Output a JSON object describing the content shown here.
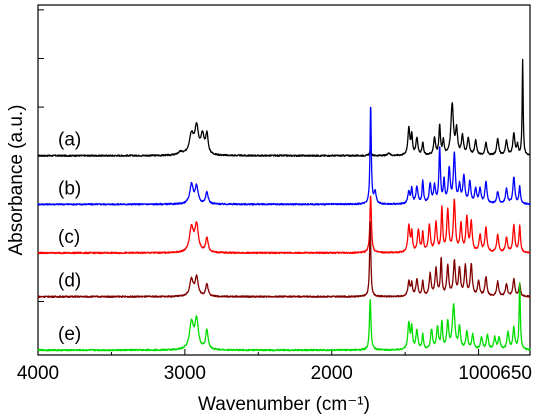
{
  "chart_data": {
    "type": "line",
    "title": "",
    "xlabel": "Wavenumber (cm⁻¹)",
    "ylabel": "Absorbance (a.u.)",
    "xlim": [
      4000,
      650
    ],
    "x_reversed": true,
    "x_ticks": [
      {
        "value": 4000,
        "label": "4000"
      },
      {
        "value": 3000,
        "label": "3000"
      },
      {
        "value": 2000,
        "label": "2000"
      },
      {
        "value": 1000,
        "label": "1000"
      },
      {
        "value": 650,
        "label": "650"
      }
    ],
    "y_tick_labels": false,
    "grid": false,
    "series": [
      {
        "name": "(a)",
        "color": "#000000",
        "baseline": 4.0,
        "peaks": [
          [
            3030,
            0.06,
            18
          ],
          [
            2955,
            0.42,
            18
          ],
          [
            2920,
            0.55,
            14
          ],
          [
            2880,
            0.38,
            14
          ],
          [
            2850,
            0.4,
            10
          ],
          [
            1738,
            0.1,
            6
          ],
          [
            1610,
            0.06,
            8
          ],
          [
            1475,
            0.55,
            8
          ],
          [
            1455,
            0.4,
            6
          ],
          [
            1420,
            0.35,
            8
          ],
          [
            1380,
            0.25,
            6
          ],
          [
            1300,
            0.35,
            8
          ],
          [
            1265,
            0.6,
            6
          ],
          [
            1240,
            0.3,
            6
          ],
          [
            1180,
            1.05,
            10
          ],
          [
            1150,
            0.5,
            8
          ],
          [
            1110,
            0.4,
            8
          ],
          [
            1070,
            0.35,
            8
          ],
          [
            1020,
            0.3,
            8
          ],
          [
            950,
            0.25,
            8
          ],
          [
            870,
            0.35,
            8
          ],
          [
            810,
            0.3,
            8
          ],
          [
            760,
            0.45,
            8
          ],
          [
            735,
            0.2,
            6
          ],
          [
            700,
            1.95,
            4
          ]
        ]
      },
      {
        "name": "(b)",
        "color": "#0000ff",
        "baseline": 3.0,
        "peaks": [
          [
            2955,
            0.4,
            14
          ],
          [
            2920,
            0.35,
            12
          ],
          [
            2850,
            0.25,
            10
          ],
          [
            1735,
            2.05,
            5
          ],
          [
            1705,
            0.25,
            8
          ],
          [
            1475,
            0.25,
            8
          ],
          [
            1455,
            0.3,
            6
          ],
          [
            1420,
            0.35,
            8
          ],
          [
            1380,
            0.45,
            6
          ],
          [
            1330,
            0.4,
            8
          ],
          [
            1300,
            0.35,
            8
          ],
          [
            1265,
            1.15,
            6
          ],
          [
            1235,
            0.45,
            6
          ],
          [
            1200,
            0.7,
            8
          ],
          [
            1165,
            1.0,
            8
          ],
          [
            1130,
            0.35,
            8
          ],
          [
            1100,
            0.55,
            8
          ],
          [
            1060,
            0.45,
            8
          ],
          [
            1020,
            0.3,
            8
          ],
          [
            990,
            0.3,
            8
          ],
          [
            950,
            0.45,
            8
          ],
          [
            870,
            0.25,
            8
          ],
          [
            810,
            0.3,
            8
          ],
          [
            760,
            0.55,
            8
          ],
          [
            720,
            0.35,
            6
          ]
        ]
      },
      {
        "name": "(c)",
        "color": "#ff0000",
        "baseline": 2.0,
        "peaks": [
          [
            2955,
            0.5,
            16
          ],
          [
            2920,
            0.55,
            14
          ],
          [
            2850,
            0.3,
            10
          ],
          [
            1735,
            1.2,
            6
          ],
          [
            1475,
            0.55,
            8
          ],
          [
            1455,
            0.4,
            6
          ],
          [
            1410,
            0.45,
            8
          ],
          [
            1380,
            0.4,
            6
          ],
          [
            1335,
            0.55,
            8
          ],
          [
            1290,
            0.6,
            8
          ],
          [
            1250,
            0.9,
            6
          ],
          [
            1210,
            0.85,
            8
          ],
          [
            1165,
            1.05,
            8
          ],
          [
            1120,
            0.55,
            8
          ],
          [
            1080,
            0.7,
            8
          ],
          [
            1050,
            0.6,
            8
          ],
          [
            990,
            0.35,
            8
          ],
          [
            950,
            0.5,
            8
          ],
          [
            870,
            0.35,
            8
          ],
          [
            810,
            0.3,
            8
          ],
          [
            760,
            0.55,
            8
          ],
          [
            720,
            0.55,
            6
          ]
        ]
      },
      {
        "name": "(d)",
        "color": "#800000",
        "baseline": 1.1,
        "peaks": [
          [
            2955,
            0.35,
            14
          ],
          [
            2920,
            0.4,
            12
          ],
          [
            2850,
            0.25,
            10
          ],
          [
            1738,
            1.55,
            5
          ],
          [
            1475,
            0.3,
            8
          ],
          [
            1455,
            0.25,
            6
          ],
          [
            1420,
            0.35,
            8
          ],
          [
            1380,
            0.3,
            6
          ],
          [
            1330,
            0.45,
            8
          ],
          [
            1290,
            0.55,
            8
          ],
          [
            1255,
            0.75,
            6
          ],
          [
            1210,
            0.6,
            8
          ],
          [
            1165,
            0.7,
            8
          ],
          [
            1130,
            0.55,
            8
          ],
          [
            1090,
            0.6,
            8
          ],
          [
            1050,
            0.65,
            8
          ],
          [
            1000,
            0.3,
            8
          ],
          [
            950,
            0.4,
            8
          ],
          [
            870,
            0.3,
            8
          ],
          [
            810,
            0.25,
            8
          ],
          [
            760,
            0.35,
            8
          ],
          [
            720,
            0.25,
            6
          ]
        ]
      },
      {
        "name": "(e)",
        "color": "#00dd00",
        "baseline": 0.0,
        "peaks": [
          [
            2955,
            0.55,
            16
          ],
          [
            2920,
            0.6,
            14
          ],
          [
            2850,
            0.4,
            10
          ],
          [
            1738,
            1.05,
            6
          ],
          [
            1475,
            0.55,
            8
          ],
          [
            1455,
            0.45,
            6
          ],
          [
            1420,
            0.4,
            8
          ],
          [
            1380,
            0.3,
            6
          ],
          [
            1320,
            0.4,
            8
          ],
          [
            1280,
            0.45,
            8
          ],
          [
            1250,
            0.55,
            6
          ],
          [
            1210,
            0.55,
            8
          ],
          [
            1170,
            0.9,
            10
          ],
          [
            1130,
            0.45,
            8
          ],
          [
            1080,
            0.35,
            8
          ],
          [
            1040,
            0.3,
            8
          ],
          [
            980,
            0.25,
            8
          ],
          [
            940,
            0.3,
            8
          ],
          [
            890,
            0.25,
            8
          ],
          [
            860,
            0.25,
            8
          ],
          [
            800,
            0.35,
            8
          ],
          [
            760,
            0.45,
            8
          ],
          [
            720,
            1.35,
            5
          ]
        ]
      }
    ],
    "ylim": [
      -0.1,
      7.1
    ]
  }
}
